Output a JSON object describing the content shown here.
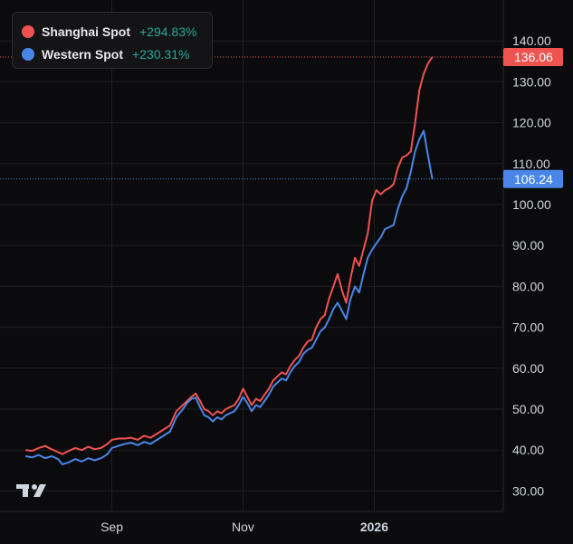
{
  "colors": {
    "background": "#0b0b0d",
    "grid": "#1f2024",
    "axis_text": "#d1d4dc",
    "shanghai": "#ef5350",
    "western": "#4a86e8",
    "change_positive": "#26a69a"
  },
  "legend": {
    "items": [
      {
        "name": "Shanghai Spot",
        "change": "+294.83%",
        "color": "#ef5350"
      },
      {
        "name": "Western Spot",
        "change": "+230.31%",
        "color": "#4a86e8"
      }
    ]
  },
  "logo": {
    "icon": "tradingview-logo-icon"
  },
  "chart_data": {
    "type": "line",
    "title": "",
    "xlabel": "",
    "ylabel": "",
    "ylim": [
      25,
      150
    ],
    "y_ticks": [
      "30.00",
      "40.00",
      "50.00",
      "60.00",
      "70.00",
      "80.00",
      "90.00",
      "100.00",
      "110.00",
      "120.00",
      "130.00",
      "140.00"
    ],
    "x_ticks": [
      {
        "label": "Sep",
        "day": 40
      },
      {
        "label": "Nov",
        "day": 101
      },
      {
        "label": "2026",
        "day": 162
      }
    ],
    "x_range_days": [
      -12,
      222
    ],
    "grid": true,
    "legend_position": "top-left",
    "last_value_labels": [
      {
        "series": "Shanghai Spot",
        "value": "136.06"
      },
      {
        "series": "Western Spot",
        "value": "106.24"
      }
    ],
    "series": [
      {
        "name": "Shanghai Spot",
        "color": "#ef5350",
        "points": [
          [
            0,
            40.0
          ],
          [
            3,
            39.8
          ],
          [
            6,
            40.5
          ],
          [
            9,
            41.0
          ],
          [
            12,
            40.2
          ],
          [
            15,
            39.5
          ],
          [
            17,
            39.0
          ],
          [
            20,
            39.8
          ],
          [
            23,
            40.5
          ],
          [
            26,
            40.0
          ],
          [
            29,
            40.8
          ],
          [
            32,
            40.2
          ],
          [
            35,
            40.5
          ],
          [
            38,
            41.5
          ],
          [
            40,
            42.5
          ],
          [
            43,
            42.8
          ],
          [
            46,
            42.8
          ],
          [
            49,
            43.0
          ],
          [
            52,
            42.5
          ],
          [
            55,
            43.5
          ],
          [
            58,
            43.0
          ],
          [
            61,
            44.0
          ],
          [
            64,
            45.0
          ],
          [
            67,
            46.0
          ],
          [
            70,
            49.5
          ],
          [
            73,
            51.0
          ],
          [
            75,
            52.0
          ],
          [
            77,
            53.0
          ],
          [
            79,
            53.8
          ],
          [
            81,
            52.0
          ],
          [
            83,
            50.0
          ],
          [
            85,
            49.5
          ],
          [
            87,
            48.5
          ],
          [
            89,
            49.5
          ],
          [
            91,
            49.0
          ],
          [
            93,
            50.0
          ],
          [
            95,
            50.5
          ],
          [
            97,
            51.0
          ],
          [
            99,
            52.5
          ],
          [
            101,
            55.0
          ],
          [
            103,
            53.0
          ],
          [
            105,
            51.0
          ],
          [
            107,
            52.5
          ],
          [
            109,
            52.0
          ],
          [
            111,
            53.5
          ],
          [
            113,
            55.0
          ],
          [
            115,
            57.0
          ],
          [
            117,
            58.0
          ],
          [
            119,
            59.0
          ],
          [
            121,
            58.5
          ],
          [
            123,
            60.5
          ],
          [
            125,
            62.0
          ],
          [
            127,
            63.0
          ],
          [
            129,
            65.0
          ],
          [
            131,
            66.5
          ],
          [
            133,
            67.0
          ],
          [
            135,
            70.0
          ],
          [
            137,
            72.0
          ],
          [
            139,
            73.0
          ],
          [
            141,
            77.0
          ],
          [
            143,
            80.0
          ],
          [
            145,
            83.0
          ],
          [
            147,
            79.0
          ],
          [
            149,
            76.0
          ],
          [
            151,
            82.0
          ],
          [
            153,
            87.0
          ],
          [
            155,
            85.0
          ],
          [
            157,
            89.0
          ],
          [
            159,
            93.0
          ],
          [
            161,
            101.0
          ],
          [
            163,
            103.5
          ],
          [
            165,
            102.5
          ],
          [
            167,
            103.5
          ],
          [
            169,
            104.0
          ],
          [
            171,
            105.0
          ],
          [
            173,
            109.0
          ],
          [
            175,
            111.5
          ],
          [
            177,
            112.0
          ],
          [
            179,
            113.0
          ],
          [
            181,
            120.0
          ],
          [
            183,
            128.0
          ],
          [
            185,
            132.0
          ],
          [
            187,
            134.5
          ],
          [
            189,
            136.06
          ]
        ]
      },
      {
        "name": "Western Spot",
        "color": "#4a86e8",
        "points": [
          [
            0,
            38.5
          ],
          [
            3,
            38.2
          ],
          [
            6,
            38.8
          ],
          [
            9,
            38.0
          ],
          [
            12,
            38.5
          ],
          [
            15,
            37.8
          ],
          [
            17,
            36.5
          ],
          [
            20,
            37.0
          ],
          [
            23,
            37.8
          ],
          [
            26,
            37.2
          ],
          [
            29,
            38.0
          ],
          [
            32,
            37.5
          ],
          [
            35,
            38.0
          ],
          [
            38,
            39.0
          ],
          [
            40,
            40.5
          ],
          [
            43,
            41.0
          ],
          [
            46,
            41.5
          ],
          [
            49,
            41.8
          ],
          [
            52,
            41.2
          ],
          [
            55,
            42.0
          ],
          [
            58,
            41.5
          ],
          [
            61,
            42.5
          ],
          [
            64,
            43.5
          ],
          [
            67,
            44.5
          ],
          [
            70,
            48.0
          ],
          [
            73,
            50.0
          ],
          [
            75,
            51.5
          ],
          [
            77,
            52.5
          ],
          [
            79,
            52.8
          ],
          [
            81,
            50.5
          ],
          [
            83,
            48.5
          ],
          [
            85,
            48.0
          ],
          [
            87,
            47.0
          ],
          [
            89,
            48.0
          ],
          [
            91,
            47.5
          ],
          [
            93,
            48.5
          ],
          [
            95,
            49.0
          ],
          [
            97,
            49.5
          ],
          [
            99,
            51.0
          ],
          [
            101,
            53.0
          ],
          [
            103,
            51.5
          ],
          [
            105,
            49.5
          ],
          [
            107,
            51.0
          ],
          [
            109,
            50.5
          ],
          [
            111,
            52.0
          ],
          [
            113,
            53.5
          ],
          [
            115,
            55.5
          ],
          [
            117,
            56.5
          ],
          [
            119,
            57.5
          ],
          [
            121,
            57.0
          ],
          [
            123,
            59.0
          ],
          [
            125,
            60.5
          ],
          [
            127,
            61.5
          ],
          [
            129,
            63.5
          ],
          [
            131,
            64.5
          ],
          [
            133,
            65.0
          ],
          [
            135,
            67.0
          ],
          [
            137,
            69.0
          ],
          [
            139,
            70.0
          ],
          [
            141,
            72.0
          ],
          [
            143,
            74.5
          ],
          [
            145,
            76.0
          ],
          [
            147,
            74.0
          ],
          [
            149,
            72.0
          ],
          [
            151,
            77.0
          ],
          [
            153,
            80.0
          ],
          [
            155,
            78.5
          ],
          [
            157,
            83.0
          ],
          [
            159,
            87.0
          ],
          [
            161,
            89.0
          ],
          [
            163,
            90.5
          ],
          [
            165,
            92.0
          ],
          [
            167,
            94.0
          ],
          [
            169,
            94.5
          ],
          [
            171,
            95.0
          ],
          [
            173,
            99.0
          ],
          [
            175,
            102.0
          ],
          [
            177,
            104.0
          ],
          [
            179,
            108.0
          ],
          [
            181,
            113.0
          ],
          [
            183,
            116.0
          ],
          [
            185,
            118.0
          ],
          [
            187,
            112.0
          ],
          [
            189,
            106.24
          ]
        ]
      }
    ]
  }
}
